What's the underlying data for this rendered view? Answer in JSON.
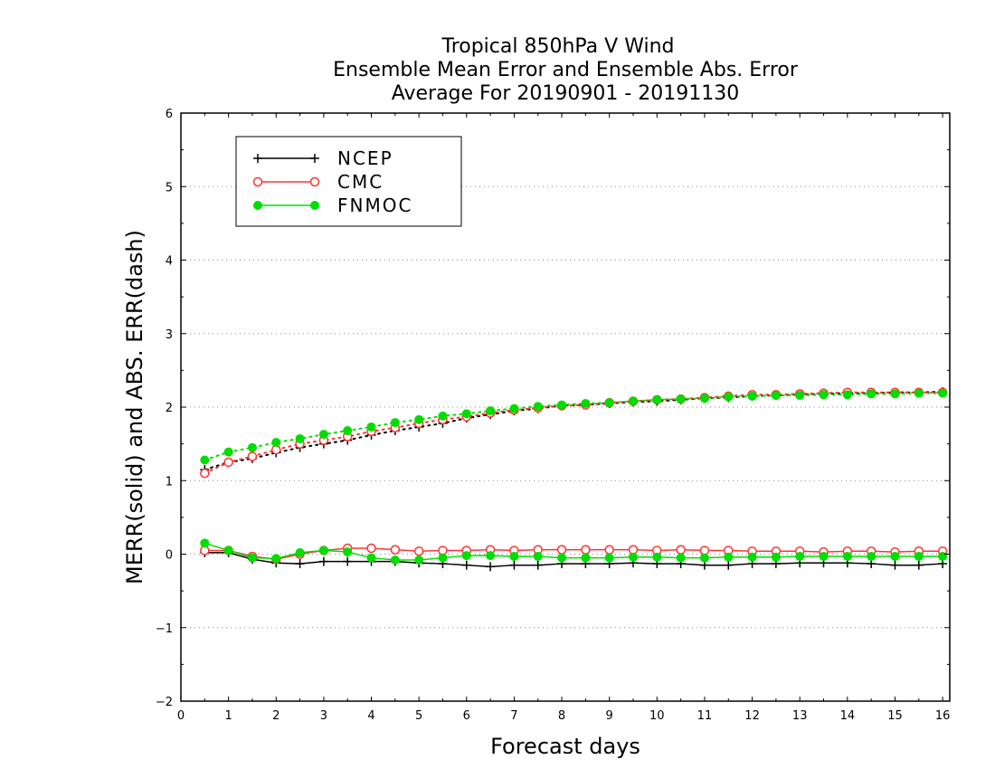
{
  "chart_data": {
    "type": "line",
    "title_lines": [
      "Tropical 850hPa V Wind",
      "Ensemble Mean Error and Ensemble Abs. Error",
      "Average For 20190901 - 20191130"
    ],
    "xlabel": "Forecast days",
    "ylabel": "MERR(solid) and ABS. ERR(dash)",
    "xlim": [
      0,
      16.15
    ],
    "ylim": [
      -2,
      6
    ],
    "x_ticks": [
      0,
      1,
      2,
      3,
      4,
      5,
      6,
      7,
      8,
      9,
      10,
      11,
      12,
      13,
      14,
      15,
      16
    ],
    "x_tick_labels": [
      "0",
      "1",
      "2",
      "3",
      "4",
      "5",
      "6",
      "7",
      "8",
      "9",
      "10",
      "11",
      "12",
      "13",
      "14",
      "15",
      "16"
    ],
    "y_ticks": [
      -2,
      -1,
      0,
      1,
      2,
      3,
      4,
      5,
      6
    ],
    "y_tick_labels": [
      "−2",
      "−1",
      "0",
      "1",
      "2",
      "3",
      "4",
      "5",
      "6"
    ],
    "grid": "horizontal dotted",
    "legend_position": "top-left",
    "x": [
      0.5,
      1.0,
      1.5,
      2.0,
      2.5,
      3.0,
      3.5,
      4.0,
      4.5,
      5.0,
      5.5,
      6.0,
      6.5,
      7.0,
      7.5,
      8.0,
      8.5,
      9.0,
      9.5,
      10.0,
      10.5,
      11.0,
      11.5,
      12.0,
      12.5,
      13.0,
      13.5,
      14.0,
      14.5,
      15.0,
      15.5,
      16.0
    ],
    "series": [
      {
        "name": "NCEP",
        "color": "#000000",
        "marker": "plus",
        "merr": [
          0.02,
          0.02,
          -0.07,
          -0.12,
          -0.13,
          -0.1,
          -0.1,
          -0.1,
          -0.1,
          -0.12,
          -0.13,
          -0.15,
          -0.17,
          -0.15,
          -0.15,
          -0.13,
          -0.13,
          -0.13,
          -0.12,
          -0.13,
          -0.13,
          -0.15,
          -0.15,
          -0.13,
          -0.13,
          -0.12,
          -0.12,
          -0.12,
          -0.13,
          -0.15,
          -0.15,
          -0.13
        ],
        "abs_err": [
          1.15,
          1.25,
          1.3,
          1.38,
          1.45,
          1.5,
          1.55,
          1.62,
          1.68,
          1.73,
          1.78,
          1.85,
          1.9,
          1.95,
          1.98,
          2.02,
          2.03,
          2.05,
          2.07,
          2.08,
          2.1,
          2.12,
          2.13,
          2.15,
          2.16,
          2.17,
          2.18,
          2.19,
          2.19,
          2.2,
          2.2,
          2.21
        ]
      },
      {
        "name": "CMC",
        "color": "#ff3333",
        "marker": "open-circle",
        "merr": [
          0.05,
          0.05,
          -0.03,
          -0.07,
          0.0,
          0.05,
          0.08,
          0.08,
          0.06,
          0.04,
          0.05,
          0.05,
          0.06,
          0.05,
          0.06,
          0.06,
          0.06,
          0.06,
          0.06,
          0.05,
          0.06,
          0.05,
          0.05,
          0.04,
          0.04,
          0.04,
          0.03,
          0.04,
          0.04,
          0.03,
          0.04,
          0.04
        ],
        "abs_err": [
          1.1,
          1.25,
          1.33,
          1.42,
          1.5,
          1.55,
          1.6,
          1.67,
          1.72,
          1.78,
          1.83,
          1.87,
          1.92,
          1.96,
          1.99,
          2.02,
          2.03,
          2.06,
          2.08,
          2.1,
          2.11,
          2.13,
          2.15,
          2.17,
          2.17,
          2.18,
          2.19,
          2.2,
          2.2,
          2.2,
          2.2,
          2.2
        ]
      },
      {
        "name": "FNMOC",
        "color": "#00dd00",
        "marker": "filled-circle",
        "merr": [
          0.15,
          0.05,
          -0.05,
          -0.06,
          0.02,
          0.05,
          0.03,
          -0.05,
          -0.08,
          -0.08,
          -0.05,
          -0.02,
          -0.02,
          -0.03,
          -0.03,
          -0.05,
          -0.05,
          -0.05,
          -0.04,
          -0.04,
          -0.05,
          -0.05,
          -0.04,
          -0.04,
          -0.04,
          -0.03,
          -0.03,
          -0.03,
          -0.03,
          -0.03,
          -0.03,
          -0.03
        ],
        "abs_err": [
          1.28,
          1.39,
          1.45,
          1.52,
          1.57,
          1.63,
          1.68,
          1.73,
          1.79,
          1.83,
          1.88,
          1.91,
          1.95,
          1.98,
          2.01,
          2.03,
          2.05,
          2.06,
          2.08,
          2.1,
          2.11,
          2.12,
          2.14,
          2.15,
          2.16,
          2.16,
          2.17,
          2.17,
          2.18,
          2.18,
          2.19,
          2.19
        ]
      }
    ]
  }
}
